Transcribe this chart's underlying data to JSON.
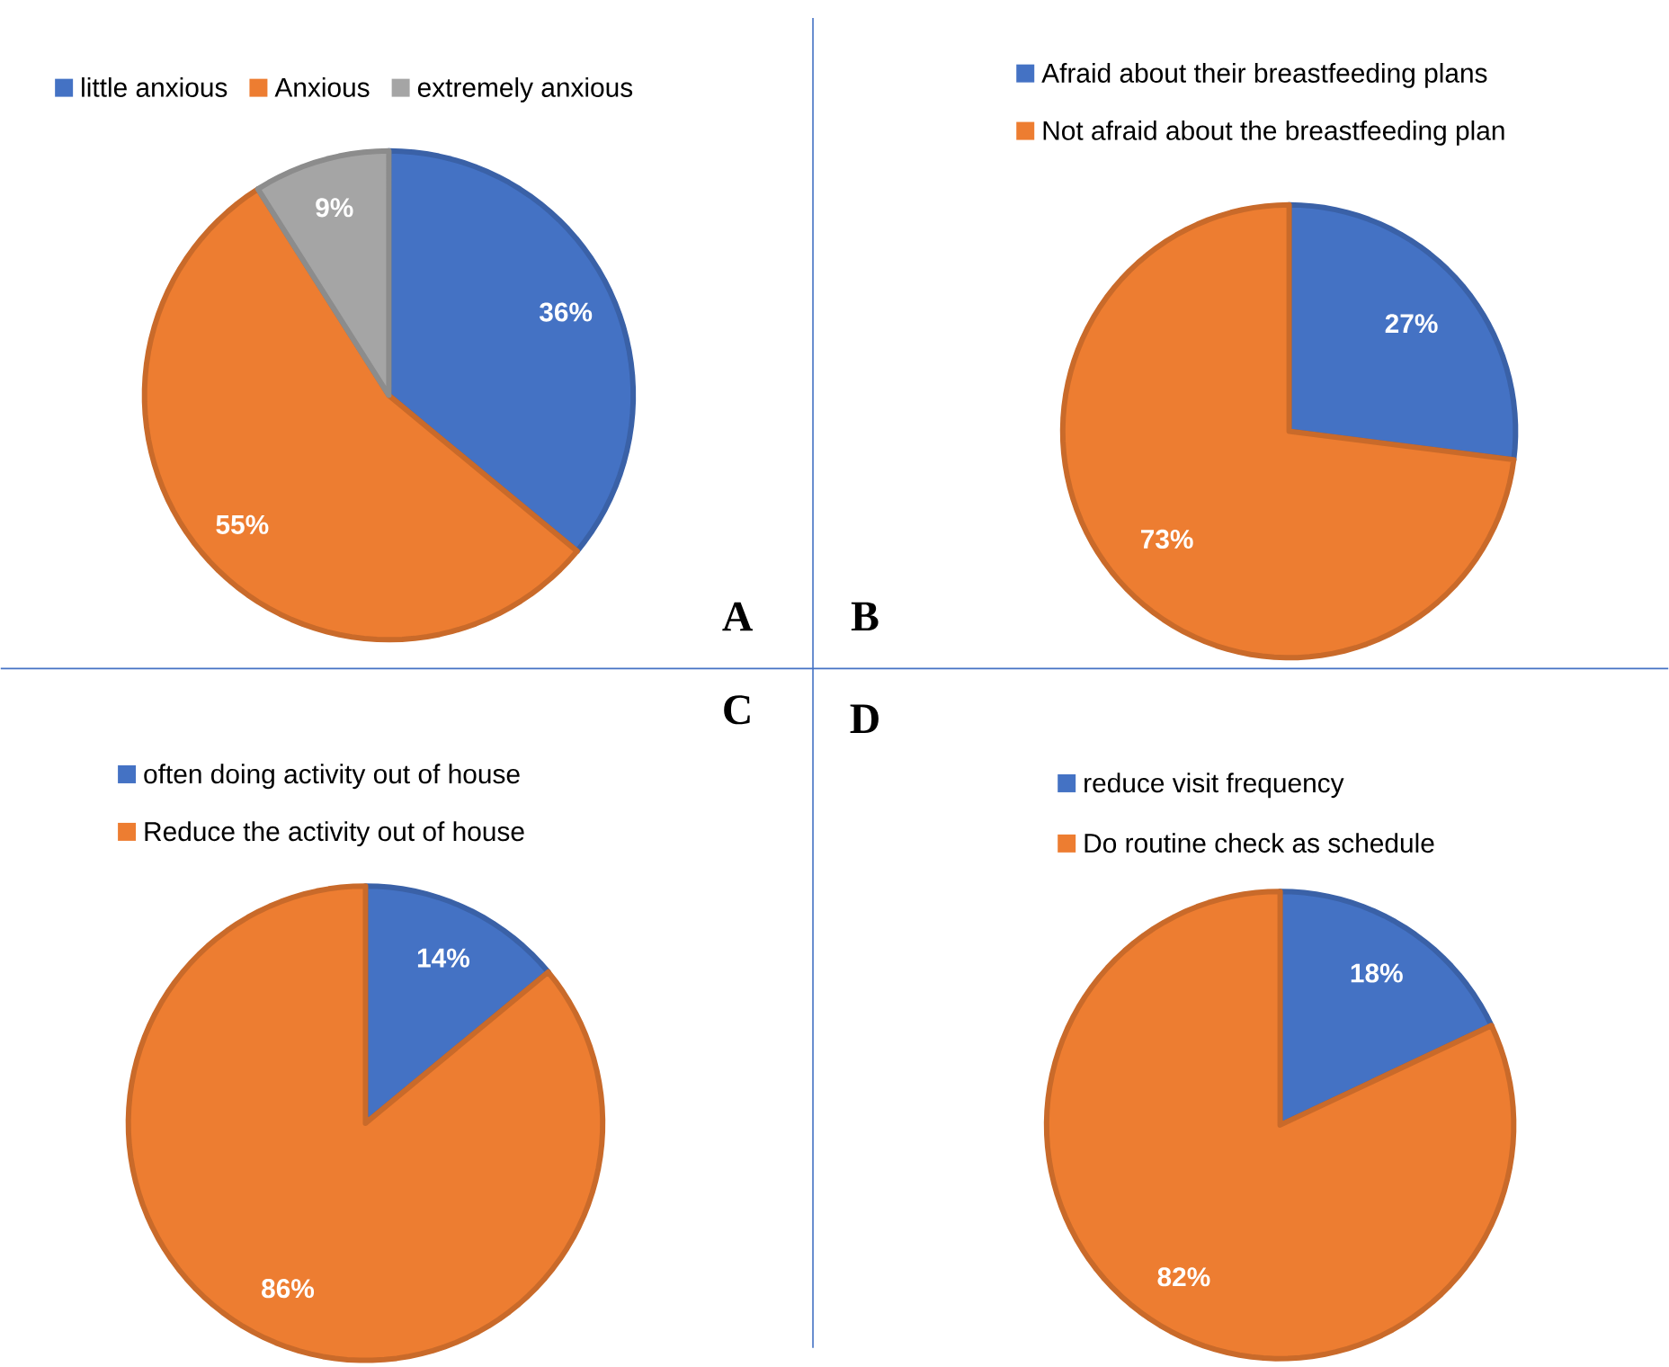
{
  "chart_data": [
    {
      "type": "pie",
      "categories": [
        "little anxious",
        "Anxious",
        "extremely anxious"
      ],
      "values": [
        36,
        55,
        9
      ],
      "colors": [
        "#4472c4",
        "#ed7d31",
        "#a5a5a5"
      ],
      "value_labels": [
        "36%",
        "55%",
        "9%"
      ],
      "legend": "top",
      "annotations": [
        "A"
      ]
    },
    {
      "type": "pie",
      "categories": [
        "Afraid about their breastfeeding plans",
        "Not afraid about the breastfeeding plan"
      ],
      "values": [
        27,
        73
      ],
      "colors": [
        "#4472c4",
        "#ed7d31"
      ],
      "value_labels": [
        "27%",
        "73%"
      ],
      "legend": "top left",
      "annotations": [
        "B"
      ]
    },
    {
      "type": "pie",
      "categories": [
        "often doing activity out of house",
        "Reduce the activity out of house"
      ],
      "values": [
        14,
        86
      ],
      "colors": [
        "#4472c4",
        "#ed7d31"
      ],
      "value_labels": [
        "14%",
        "86%"
      ],
      "legend": "top left",
      "annotations": [
        "C"
      ]
    },
    {
      "type": "pie",
      "categories": [
        "reduce visit frequency",
        "Do routine check as schedule"
      ],
      "values": [
        18,
        82
      ],
      "colors": [
        "#4472c4",
        "#ed7d31"
      ],
      "value_labels": [
        "18%",
        "82%"
      ],
      "legend": "top left",
      "annotations": [
        "D"
      ]
    }
  ]
}
